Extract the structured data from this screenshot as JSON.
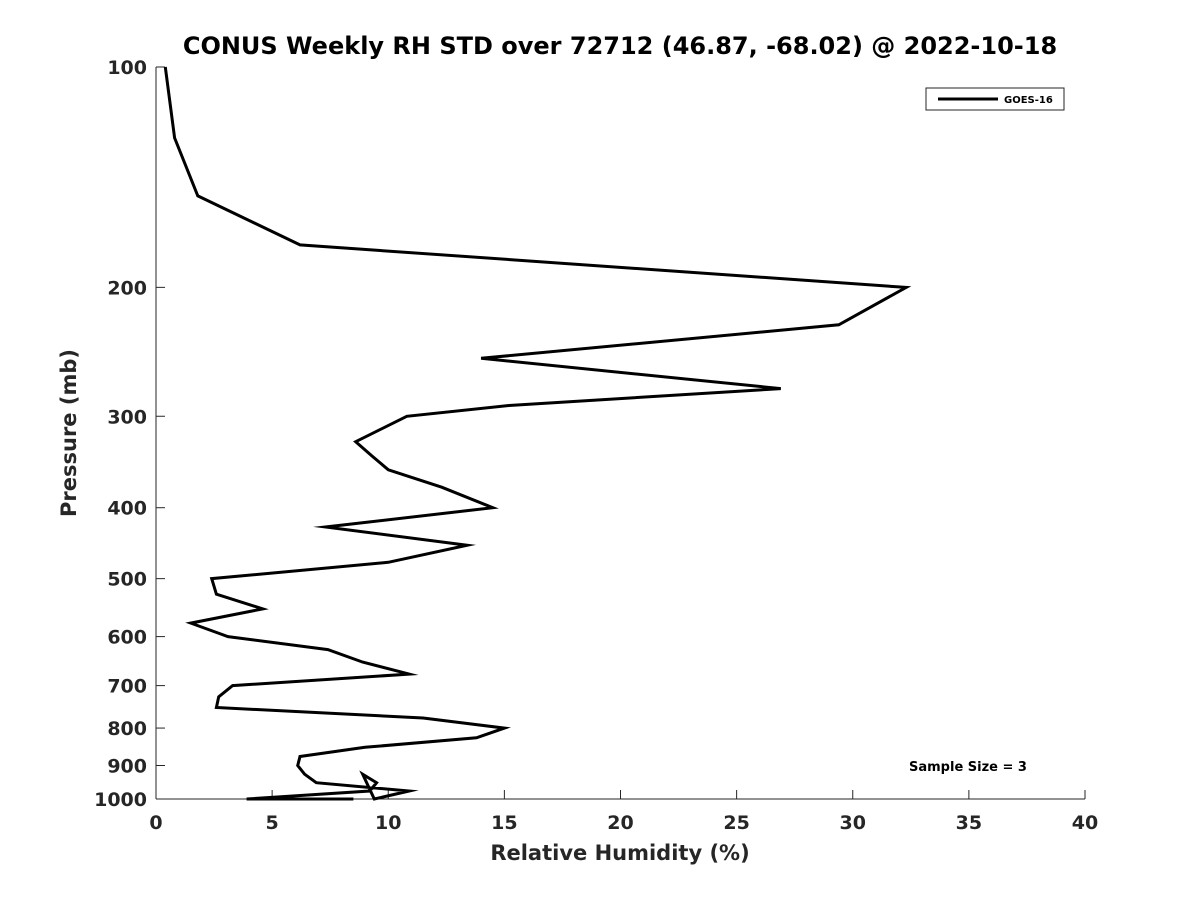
{
  "chart_data": {
    "type": "line",
    "title": "CONUS Weekly RH STD over 72712 (46.87, -68.02) @ 2022-10-18",
    "xlabel": "Relative Humidity (%)",
    "ylabel": "Pressure (mb)",
    "xlim": [
      0,
      40
    ],
    "ylim": [
      100,
      1000
    ],
    "yscale": "log",
    "y_reversed": true,
    "x_ticks": [
      0,
      5,
      10,
      15,
      20,
      25,
      30,
      35,
      40
    ],
    "x_tick_labels": [
      "0",
      "5",
      "10",
      "15",
      "20",
      "25",
      "30",
      "35",
      "40"
    ],
    "y_ticks": [
      100,
      200,
      300,
      400,
      500,
      600,
      700,
      800,
      900,
      1000
    ],
    "y_tick_labels": [
      "100",
      "200",
      "300",
      "400",
      "500",
      "600",
      "700",
      "800",
      "900",
      "1000"
    ],
    "grid": false,
    "legend_position": "top-right",
    "series": [
      {
        "name": "GOES-16",
        "color": "#000000",
        "points": [
          [
            0.4,
            100
          ],
          [
            0.8,
            125
          ],
          [
            1.8,
            150
          ],
          [
            6.2,
            175
          ],
          [
            32.3,
            200
          ],
          [
            29.4,
            225
          ],
          [
            14.0,
            250
          ],
          [
            26.9,
            275
          ],
          [
            15.2,
            290
          ],
          [
            10.8,
            300
          ],
          [
            8.6,
            325
          ],
          [
            9.3,
            340
          ],
          [
            10.0,
            355
          ],
          [
            12.3,
            375
          ],
          [
            14.5,
            400
          ],
          [
            7.3,
            425
          ],
          [
            13.4,
            450
          ],
          [
            10.0,
            475
          ],
          [
            2.4,
            500
          ],
          [
            2.6,
            525
          ],
          [
            4.6,
            550
          ],
          [
            1.5,
            575
          ],
          [
            3.1,
            600
          ],
          [
            7.4,
            625
          ],
          [
            8.9,
            650
          ],
          [
            10.9,
            675
          ],
          [
            3.3,
            700
          ],
          [
            2.7,
            725
          ],
          [
            2.6,
            750
          ],
          [
            11.5,
            775
          ],
          [
            15.0,
            800
          ],
          [
            13.8,
            825
          ],
          [
            9.0,
            850
          ],
          [
            6.2,
            875
          ],
          [
            6.1,
            900
          ],
          [
            6.4,
            925
          ],
          [
            6.9,
            950
          ],
          [
            10.9,
            975
          ],
          [
            9.4,
            1000
          ],
          [
            8.9,
            925
          ],
          [
            9.5,
            950
          ],
          [
            9.2,
            975
          ],
          [
            3.9,
            1000
          ],
          [
            8.5,
            1000
          ]
        ]
      }
    ],
    "annotation": "Sample Size = 3"
  }
}
